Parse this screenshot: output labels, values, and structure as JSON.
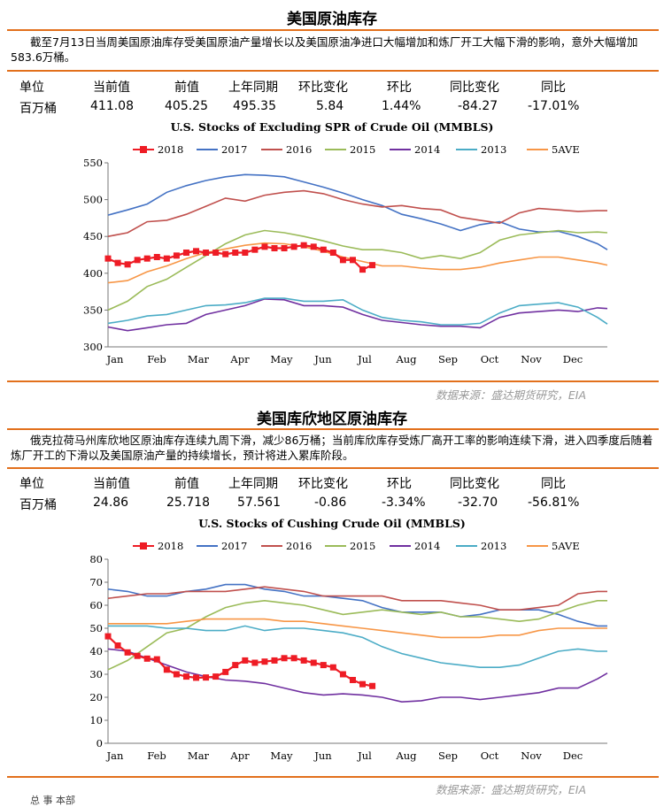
{
  "s1": {
    "title": "美国原油库存",
    "paragraph": "截至7月13日当周美国原油库存受美国原油产量增长以及美国原油净进口大幅增加和炼厂开工大幅下滑的影响，意外大幅增加583.6万桶。",
    "headers": [
      "单位",
      "当前值",
      "前值",
      "上年同期",
      "环比变化",
      "环比",
      "同比变化",
      "同比"
    ],
    "values": [
      "百万桶",
      "411.08",
      "405.25",
      "495.35",
      "5.84",
      "1.44%",
      "-84.27",
      "-17.01%"
    ],
    "source": "数据来源：盛达期货研究，EIA"
  },
  "s2": {
    "title": "美国库欣地区原油库存",
    "paragraph": "俄克拉荷马州库欣地区原油库存连续九周下滑，减少86万桶；当前库欣库存受炼厂高开工率的影响连续下滑，进入四季度后随着炼厂开工的下滑以及美国原油产量的持续增长，预计将进入累库阶段。",
    "headers": [
      "单位",
      "当前值",
      "前值",
      "上年同期",
      "环比变化",
      "环比",
      "同比变化",
      "同比"
    ],
    "values": [
      "百万桶",
      "24.86",
      "25.718",
      "57.561",
      "-0.86",
      "-3.34%",
      "-32.70",
      "-56.81%"
    ],
    "source": "数据来源：盛达期货研究，EIA"
  },
  "footer": "总 事 本部",
  "chart_data": [
    {
      "type": "line",
      "title": "U.S. Stocks of Excluding SPR of Crude Oil (MMBLS)",
      "xlabel": "",
      "ylabel": "",
      "x_ticks": [
        "Jan",
        "Feb",
        "Mar",
        "Apr",
        "May",
        "Jun",
        "Jul",
        "Aug",
        "Sep",
        "Oct",
        "Nov",
        "Dec"
      ],
      "ylim": [
        300,
        550
      ],
      "y_ticks": [
        300,
        350,
        400,
        450,
        500,
        550
      ],
      "grid": false,
      "legend": "top",
      "x_unit": "week of year (1-52)",
      "series": [
        {
          "name": "2018",
          "color": "#ee1c25",
          "marker": "square",
          "x": [
            1,
            2,
            3,
            4,
            5,
            6,
            7,
            8,
            9,
            10,
            11,
            12,
            13,
            14,
            15,
            16,
            17,
            18,
            19,
            20,
            21,
            22,
            23,
            24,
            25,
            26,
            27,
            28
          ],
          "values": [
            420,
            414,
            412,
            418,
            420,
            422,
            420,
            424,
            428,
            430,
            428,
            428,
            426,
            428,
            428,
            432,
            436,
            434,
            434,
            436,
            438,
            436,
            432,
            428,
            418,
            418,
            405,
            411
          ]
        },
        {
          "name": "2017",
          "color": "#4472c4",
          "x": [
            1,
            3,
            5,
            7,
            9,
            11,
            13,
            15,
            17,
            19,
            21,
            23,
            25,
            27,
            29,
            31,
            33,
            35,
            37,
            39,
            41,
            43,
            45,
            47,
            49,
            51,
            52
          ],
          "values": [
            479,
            486,
            494,
            510,
            519,
            526,
            531,
            534,
            533,
            531,
            524,
            517,
            509,
            500,
            492,
            480,
            474,
            467,
            458,
            466,
            470,
            460,
            456,
            457,
            450,
            440,
            432
          ]
        },
        {
          "name": "2016",
          "color": "#c0504d",
          "x": [
            1,
            3,
            5,
            7,
            9,
            11,
            13,
            15,
            17,
            19,
            21,
            23,
            25,
            27,
            29,
            31,
            33,
            35,
            37,
            39,
            41,
            43,
            45,
            47,
            49,
            51,
            52
          ],
          "values": [
            450,
            455,
            470,
            472,
            480,
            491,
            502,
            498,
            506,
            510,
            512,
            508,
            500,
            494,
            490,
            492,
            488,
            486,
            476,
            472,
            468,
            482,
            488,
            486,
            484,
            485,
            485
          ]
        },
        {
          "name": "2015",
          "color": "#9bbb59",
          "x": [
            1,
            3,
            5,
            7,
            9,
            11,
            13,
            15,
            17,
            19,
            21,
            23,
            25,
            27,
            29,
            31,
            33,
            35,
            37,
            39,
            41,
            43,
            45,
            47,
            49,
            51,
            52
          ],
          "values": [
            350,
            362,
            382,
            392,
            408,
            424,
            440,
            452,
            458,
            455,
            450,
            444,
            437,
            432,
            432,
            428,
            420,
            424,
            420,
            428,
            445,
            452,
            455,
            458,
            455,
            456,
            455
          ]
        },
        {
          "name": "2014",
          "color": "#7030a0",
          "x": [
            1,
            3,
            5,
            7,
            9,
            11,
            13,
            15,
            17,
            19,
            21,
            23,
            25,
            27,
            29,
            31,
            33,
            35,
            37,
            39,
            41,
            43,
            45,
            47,
            49,
            51,
            52
          ],
          "values": [
            327,
            322,
            326,
            330,
            332,
            344,
            350,
            356,
            365,
            364,
            356,
            356,
            354,
            344,
            336,
            333,
            330,
            328,
            328,
            326,
            340,
            346,
            348,
            350,
            348,
            353,
            352
          ]
        },
        {
          "name": "2013",
          "color": "#4bacc6",
          "x": [
            1,
            3,
            5,
            7,
            9,
            11,
            13,
            15,
            17,
            19,
            21,
            23,
            25,
            27,
            29,
            31,
            33,
            35,
            37,
            39,
            41,
            43,
            45,
            47,
            49,
            51,
            52
          ],
          "values": [
            332,
            336,
            342,
            344,
            350,
            356,
            357,
            360,
            366,
            366,
            362,
            362,
            364,
            350,
            340,
            336,
            334,
            330,
            330,
            332,
            346,
            356,
            358,
            360,
            354,
            340,
            331
          ]
        },
        {
          "name": "5AVE",
          "color": "#f79646",
          "x": [
            1,
            3,
            5,
            7,
            9,
            11,
            13,
            15,
            17,
            19,
            21,
            23,
            25,
            27,
            29,
            31,
            33,
            35,
            37,
            39,
            41,
            43,
            45,
            47,
            49,
            51,
            52
          ],
          "values": [
            387,
            390,
            402,
            410,
            420,
            428,
            433,
            438,
            441,
            440,
            436,
            430,
            422,
            416,
            410,
            410,
            407,
            405,
            405,
            408,
            414,
            418,
            422,
            422,
            418,
            414,
            411
          ]
        }
      ]
    },
    {
      "type": "line",
      "title": "U.S. Stocks of Cushing  Crude Oil (MMBLS)",
      "xlabel": "",
      "ylabel": "",
      "x_ticks": [
        "Jan",
        "Feb",
        "Mar",
        "Apr",
        "May",
        "Jun",
        "Jul",
        "Aug",
        "Sep",
        "Oct",
        "Nov",
        "Dec"
      ],
      "ylim": [
        0,
        80
      ],
      "y_ticks": [
        0,
        10,
        20,
        30,
        40,
        50,
        60,
        70,
        80
      ],
      "grid": false,
      "legend": "top",
      "x_unit": "week of year (1-52)",
      "series": [
        {
          "name": "2018",
          "color": "#ee1c25",
          "marker": "square",
          "x": [
            1,
            2,
            3,
            4,
            5,
            6,
            7,
            8,
            9,
            10,
            11,
            12,
            13,
            14,
            15,
            16,
            17,
            18,
            19,
            20,
            21,
            22,
            23,
            24,
            25,
            26,
            27,
            28
          ],
          "values": [
            46.5,
            42.5,
            39.5,
            38,
            36.8,
            36.5,
            32,
            30,
            29,
            28.5,
            28.6,
            29,
            31,
            34,
            36,
            35,
            35.5,
            36,
            37,
            37,
            36,
            35,
            34,
            33,
            30,
            27.5,
            25.7,
            24.9
          ]
        },
        {
          "name": "2017",
          "color": "#4472c4",
          "x": [
            1,
            3,
            5,
            7,
            9,
            11,
            13,
            15,
            17,
            19,
            21,
            23,
            25,
            27,
            29,
            31,
            33,
            35,
            37,
            39,
            41,
            43,
            45,
            47,
            49,
            51,
            52
          ],
          "values": [
            67,
            66,
            64,
            64,
            66,
            67,
            69,
            69,
            67,
            66,
            64,
            64,
            63,
            62,
            59,
            57,
            57,
            57,
            55,
            56,
            58,
            58,
            58,
            56,
            53,
            51,
            51
          ]
        },
        {
          "name": "2016",
          "color": "#c0504d",
          "x": [
            1,
            3,
            5,
            7,
            9,
            11,
            13,
            15,
            17,
            19,
            21,
            23,
            25,
            27,
            29,
            31,
            33,
            35,
            37,
            39,
            41,
            43,
            45,
            47,
            49,
            51,
            52
          ],
          "values": [
            63,
            64,
            65,
            65,
            66,
            66,
            66,
            67,
            68,
            67,
            66,
            64,
            64,
            64,
            64,
            62,
            62,
            62,
            61,
            60,
            58,
            58,
            59,
            60,
            65,
            66,
            66
          ]
        },
        {
          "name": "2015",
          "color": "#9bbb59",
          "x": [
            1,
            3,
            5,
            7,
            9,
            11,
            13,
            15,
            17,
            19,
            21,
            23,
            25,
            27,
            29,
            31,
            33,
            35,
            37,
            39,
            41,
            43,
            45,
            47,
            49,
            51,
            52
          ],
          "values": [
            32,
            36,
            42,
            48,
            50,
            55,
            59,
            61,
            62,
            61,
            60,
            58,
            56,
            57,
            58,
            57,
            56,
            57,
            55,
            55,
            54,
            53,
            54,
            57,
            60,
            62,
            62
          ]
        },
        {
          "name": "2014",
          "color": "#7030a0",
          "x": [
            1,
            3,
            5,
            7,
            9,
            11,
            13,
            15,
            17,
            19,
            21,
            23,
            25,
            27,
            29,
            31,
            33,
            35,
            37,
            39,
            41,
            43,
            45,
            47,
            49,
            51,
            52
          ],
          "values": [
            41,
            40,
            37,
            34,
            31,
            29,
            27.5,
            27,
            26,
            24,
            22,
            21,
            21.5,
            21,
            20,
            18,
            18.5,
            20,
            20,
            19,
            20,
            21,
            22,
            24,
            24,
            28,
            30.5
          ]
        },
        {
          "name": "2013",
          "color": "#4bacc6",
          "x": [
            1,
            3,
            5,
            7,
            9,
            11,
            13,
            15,
            17,
            19,
            21,
            23,
            25,
            27,
            29,
            31,
            33,
            35,
            37,
            39,
            41,
            43,
            45,
            47,
            49,
            51,
            52
          ],
          "values": [
            51,
            51,
            51,
            50,
            50,
            49,
            49,
            51,
            49,
            50,
            50,
            49,
            48,
            46,
            42,
            39,
            37,
            35,
            34,
            33,
            33,
            34,
            37,
            40,
            41,
            40,
            40
          ]
        },
        {
          "name": "5AVE",
          "color": "#f79646",
          "x": [
            1,
            3,
            5,
            7,
            9,
            11,
            13,
            15,
            17,
            19,
            21,
            23,
            25,
            27,
            29,
            31,
            33,
            35,
            37,
            39,
            41,
            43,
            45,
            47,
            49,
            51,
            52
          ],
          "values": [
            52,
            52,
            52,
            52,
            53,
            54,
            54,
            54,
            54,
            53,
            53,
            52,
            51,
            50,
            49,
            48,
            47,
            46,
            46,
            46,
            47,
            47,
            49,
            50,
            50,
            50,
            50
          ]
        }
      ]
    }
  ]
}
